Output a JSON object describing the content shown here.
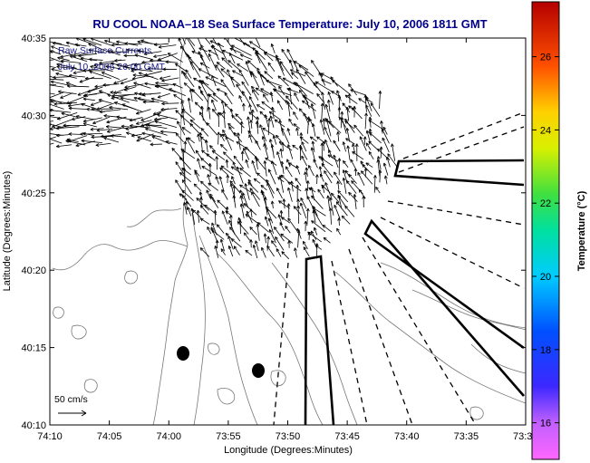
{
  "chart_data": {
    "type": "map",
    "title": "RU COOL  NOAA–18  Sea Surface Temperature:  July 10, 2006 1811 GMT",
    "xlabel": "Longitude (Degrees:Minutes)",
    "ylabel": "Latitude (Degrees:Minutes)",
    "x_ticks": [
      "74:10",
      "74:05",
      "74:00",
      "73:55",
      "73:50",
      "73:45",
      "73:40",
      "73:35",
      "73:3"
    ],
    "y_ticks": [
      "40:35",
      "40:30",
      "40:25",
      "40:20",
      "40:15",
      "40:10"
    ],
    "x_range_min": [
      -70,
      -30
    ],
    "y_range_min": [
      10,
      35
    ],
    "overlay_lines": [
      "Raw Surface Currents",
      "July 10, 2006 20:00 GMT"
    ],
    "scale_label": "50 cm/s",
    "colorbar": {
      "label": "Temperature (°C)",
      "ticks": [
        16,
        18,
        20,
        22,
        24,
        26
      ],
      "range": [
        15,
        27.5
      ]
    },
    "markers": [
      {
        "lon_min": -58.9,
        "lat_min": 14.7
      },
      {
        "lon_min": -52.3,
        "lat_min": 13.5
      }
    ],
    "grid": false
  },
  "colors": {
    "title": "#00008b",
    "overlay_text": "#1a1a8c",
    "vector": "#000000",
    "contour": "#777777"
  }
}
